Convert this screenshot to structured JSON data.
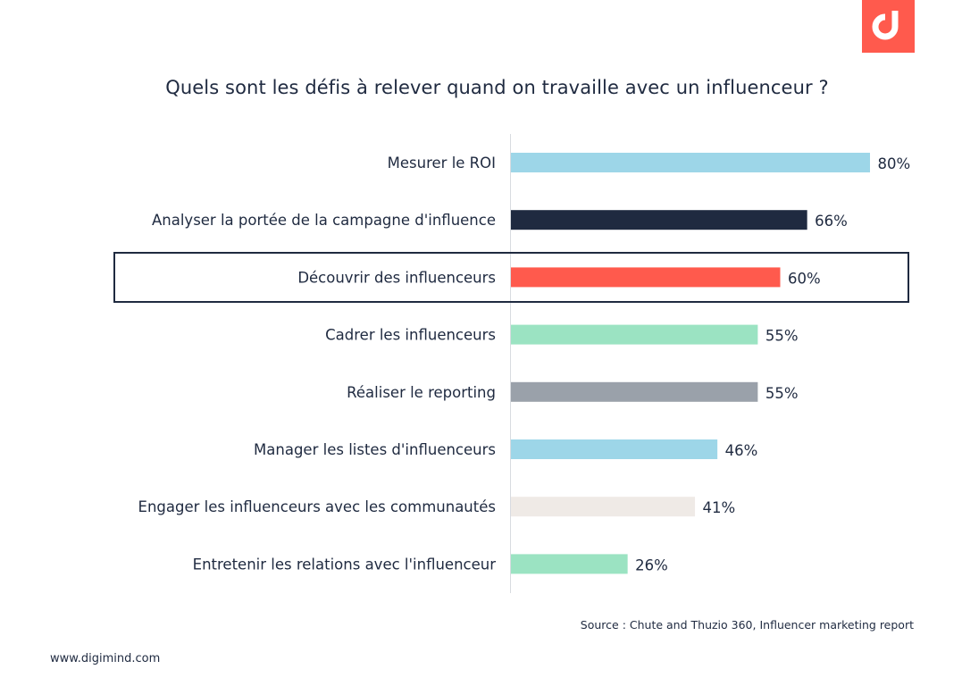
{
  "title": "Quels sont les défis à relever quand on travaille avec un influenceur ?",
  "source": "Source : Chute and Thuzio 360, Influencer marketing report",
  "website": "www.digimind.com",
  "logo": {
    "icon": "digimind-logo-icon",
    "color": "#ff5a4d"
  },
  "highlight_category": "Découvrir des influenceurs",
  "chart_data": {
    "type": "bar",
    "orientation": "horizontal",
    "categories": [
      "Mesurer le ROI",
      "Analyser la portée de la campagne d'influence",
      "Découvrir des influenceurs",
      "Cadrer les influenceurs",
      "Réaliser le reporting",
      "Manager les listes d'influenceurs",
      "Engager les influenceurs avec les communautés",
      "Entretenir les relations avec l'influenceur"
    ],
    "values": [
      80,
      66,
      60,
      55,
      55,
      46,
      41,
      26
    ],
    "value_labels": [
      "80%",
      "66%",
      "60%",
      "55%",
      "55%",
      "46%",
      "41%",
      "26%"
    ],
    "colors": [
      "#9dd6e8",
      "#1f2a40",
      "#ff5a4d",
      "#9be3c2",
      "#9aa1aa",
      "#9dd6e8",
      "#efeae6",
      "#9be3c2"
    ],
    "xlim": [
      0,
      100
    ],
    "grid": false,
    "legend": "none"
  }
}
